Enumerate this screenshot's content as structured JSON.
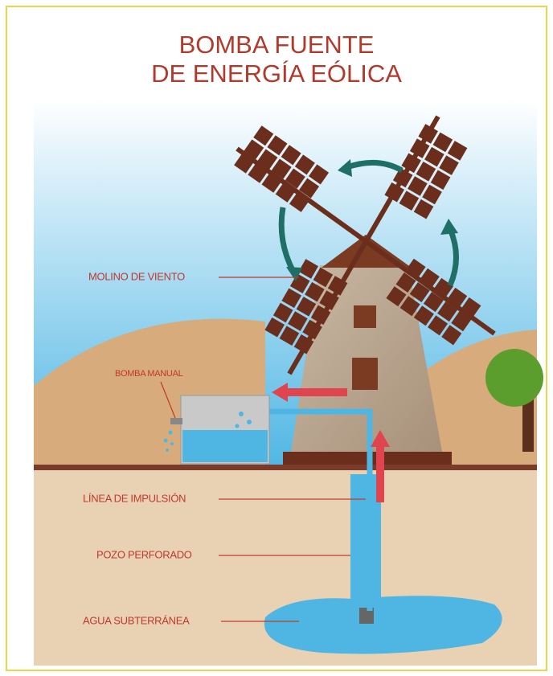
{
  "title": {
    "line1": "BOMBA FUENTE",
    "line2": "DE ENERGÍA EÓLICA"
  },
  "labels": {
    "windmill": "MOLINO DE VIENTO",
    "hand_pump": "BOMBA MANUAL",
    "pipe": "LÍNEA DE IMPULSIÓN",
    "well": "POZO PERFORADO",
    "groundwater": "AGUA SUBTERRÁNEA"
  }
}
